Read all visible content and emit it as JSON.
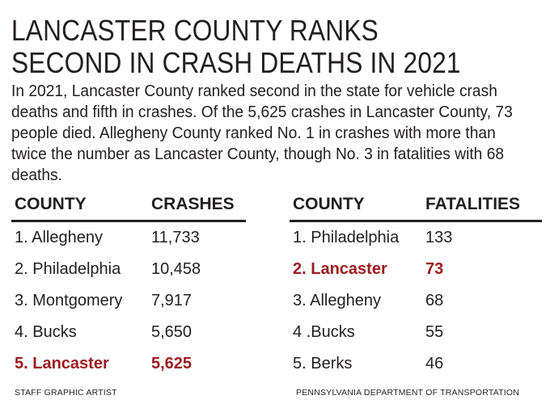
{
  "headline": {
    "line1": "LANCASTER COUNTY RANKS",
    "line2": "SECOND IN CRASH DEATHS IN 2021"
  },
  "intro": "In 2021, Lancaster County ranked second in the state for vehicle crash deaths and fifth in crashes. Of the 5,625 crashes in Lancaster County, 73 people died. Allegheny County ranked No. 1 in crashes with more than twice the number as Lancaster County, though No. 3 in fatalities with 68 deaths.",
  "highlight_color": "#9b1c20",
  "chart_data": [
    {
      "type": "table",
      "columns": [
        "COUNTY",
        "CRASHES"
      ],
      "rows": [
        {
          "county": "1. Allegheny",
          "value": "11,733",
          "highlight": false
        },
        {
          "county": "2. Philadelphia",
          "value": "10,458",
          "highlight": false
        },
        {
          "county": "3. Montgomery",
          "value": "7,917",
          "highlight": false
        },
        {
          "county": "4. Bucks",
          "value": "5,650",
          "highlight": false
        },
        {
          "county": "5. Lancaster",
          "value": "5,625",
          "highlight": true
        }
      ]
    },
    {
      "type": "table",
      "columns": [
        "COUNTY",
        "FATALITIES"
      ],
      "rows": [
        {
          "county": "1. Philadelphia",
          "value": "133",
          "highlight": false
        },
        {
          "county": "2. Lancaster",
          "value": "73",
          "highlight": true
        },
        {
          "county": "3. Allegheny",
          "value": "68",
          "highlight": false
        },
        {
          "county": "4 .Bucks",
          "value": "55",
          "highlight": false
        },
        {
          "county": "5. Berks",
          "value": "46",
          "highlight": false
        }
      ]
    }
  ],
  "credits": {
    "left": "STAFF GRAPHIC ARTIST",
    "right": "PENNSYLVANIA DEPARTMENT OF TRANSPORTATION"
  }
}
